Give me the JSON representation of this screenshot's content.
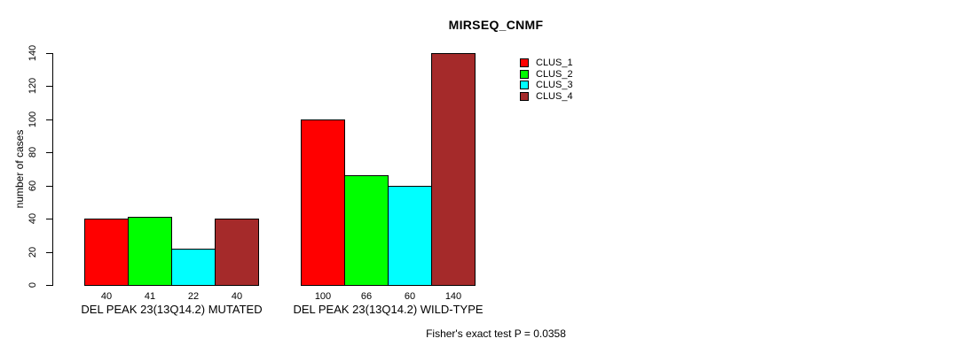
{
  "chart_data": {
    "type": "bar",
    "title": "MIRSEQ_CNMF",
    "ylabel": "number of cases",
    "xlabel": "",
    "ylim": [
      0,
      140
    ],
    "yticks": [
      0,
      20,
      40,
      60,
      80,
      100,
      120,
      140
    ],
    "grid": false,
    "legend_position": "top-right",
    "series": [
      {
        "name": "CLUS_1",
        "color": "#ff0000"
      },
      {
        "name": "CLUS_2",
        "color": "#00ff00"
      },
      {
        "name": "CLUS_3",
        "color": "#00ffff"
      },
      {
        "name": "CLUS_4",
        "color": "#a52a2a"
      }
    ],
    "categories": [
      "DEL PEAK 23(13Q14.2) MUTATED",
      "DEL PEAK 23(13Q14.2) WILD-TYPE"
    ],
    "groups": [
      {
        "label": "DEL PEAK 23(13Q14.2) MUTATED",
        "values": [
          40,
          41,
          22,
          40
        ]
      },
      {
        "label": "DEL PEAK 23(13Q14.2) WILD-TYPE",
        "values": [
          100,
          66,
          60,
          140
        ]
      }
    ],
    "bar_value_labels": true,
    "footnote": "Fisher's exact test P = 0.0358"
  }
}
